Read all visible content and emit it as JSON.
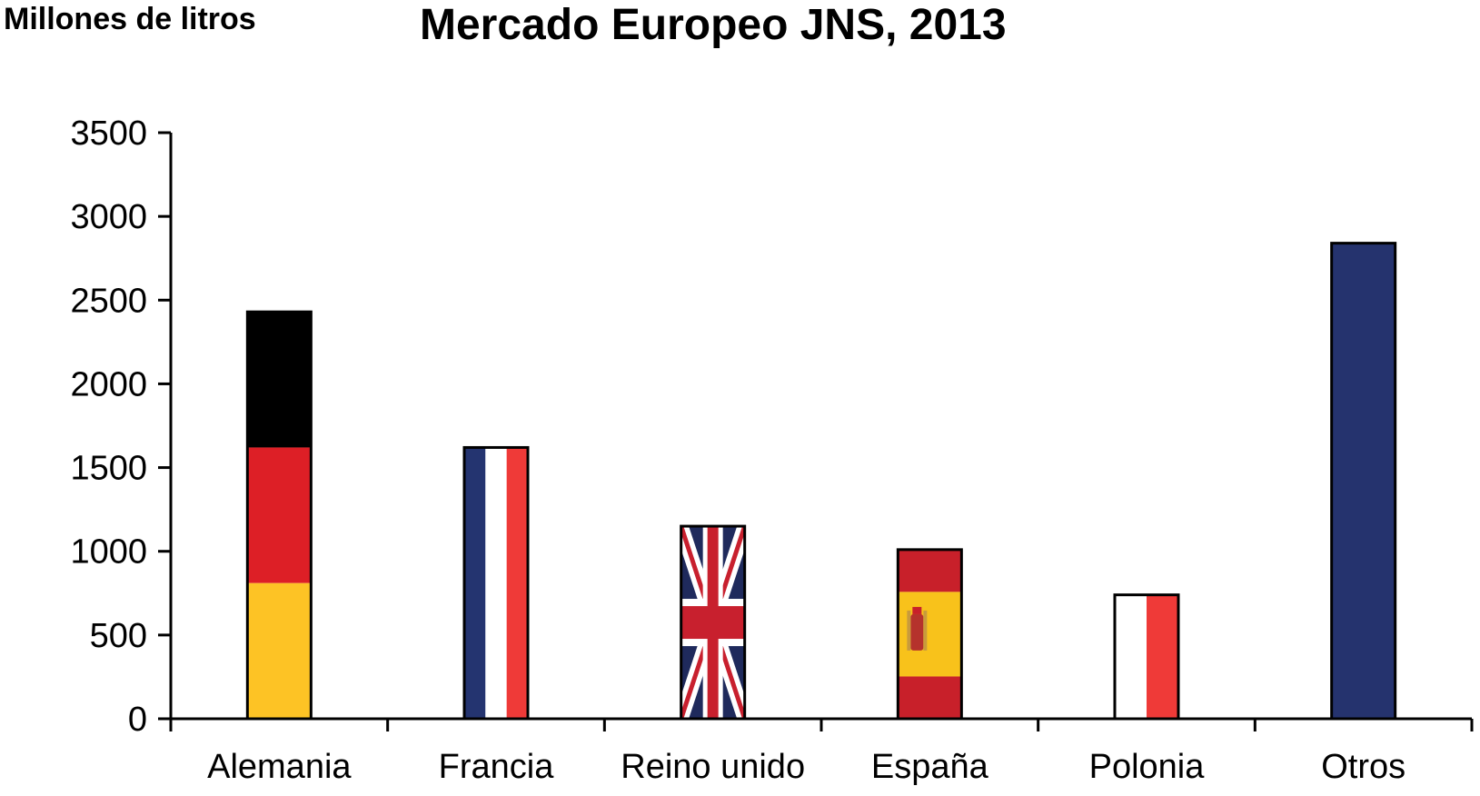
{
  "chart_data": {
    "type": "bar",
    "title": "Mercado Europeo JNS, 2013",
    "ylabel": "Millones de litros",
    "xlabel": "",
    "ylim": [
      0,
      3500
    ],
    "yticks": [
      0,
      500,
      1000,
      1500,
      2000,
      2500,
      3000,
      3500
    ],
    "ytick_labels": [
      "0",
      "500",
      "1000",
      "1500",
      "2000",
      "2500",
      "3000",
      "3500"
    ],
    "grid": false,
    "legend": "none",
    "categories": [
      "Alemania",
      "Francia",
      "Reino unido",
      "España",
      "Polonia",
      "Otros"
    ],
    "values": [
      2430,
      1620,
      1150,
      1010,
      740,
      2840
    ],
    "fills": [
      "flag-germany",
      "flag-france",
      "flag-uk",
      "flag-spain",
      "flag-poland",
      "solid"
    ],
    "colors": {
      "black": "#000000",
      "german_red": "#dd1f26",
      "german_gold": "#fdc325",
      "navy": "#243470",
      "white": "#ffffff",
      "red": "#ef3a38",
      "spain_red": "#c8202a",
      "spain_yellow": "#f8c21b",
      "uk_blue": "#1f2a5c",
      "uk_red": "#c8202e",
      "otros": "#25336e"
    }
  }
}
